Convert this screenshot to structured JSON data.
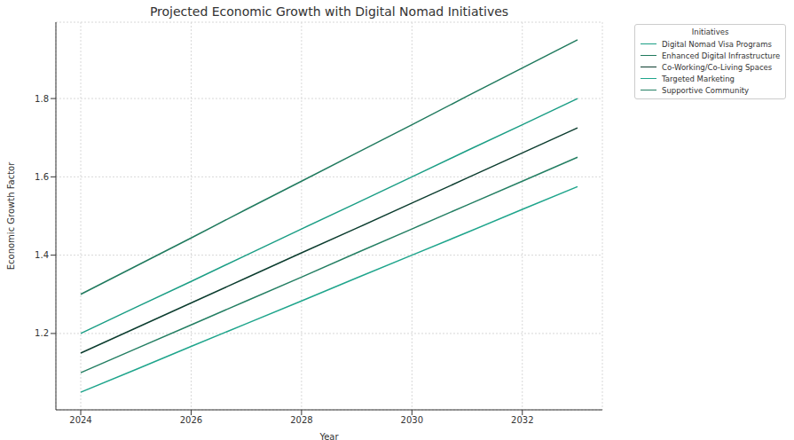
{
  "chart_data": {
    "type": "line",
    "title": "Projected Economic Growth with Digital Nomad Initiatives",
    "x_label": "Year",
    "y_label": "Economic Growth Factor",
    "legend_title": "Initiatives",
    "x": [
      2024,
      2025,
      2026,
      2027,
      2028,
      2029,
      2030,
      2031,
      2032,
      2033
    ],
    "series": [
      {
        "name": "Digital Nomad Visa Programs",
        "color": "#1b9e85",
        "values": [
          1.2,
          1.267,
          1.333,
          1.4,
          1.467,
          1.533,
          1.6,
          1.667,
          1.733,
          1.8
        ]
      },
      {
        "name": "Enhanced Digital Infrastructure",
        "color": "#207a5e",
        "values": [
          1.3,
          1.372,
          1.444,
          1.517,
          1.589,
          1.661,
          1.733,
          1.806,
          1.878,
          1.95
        ]
      },
      {
        "name": "Co-Working/Co-Living Spaces",
        "color": "#0c3d2f",
        "values": [
          1.15,
          1.214,
          1.278,
          1.342,
          1.406,
          1.469,
          1.533,
          1.597,
          1.661,
          1.725
        ]
      },
      {
        "name": "Targeted Marketing",
        "color": "#1fa58c",
        "values": [
          1.05,
          1.108,
          1.167,
          1.225,
          1.283,
          1.342,
          1.4,
          1.458,
          1.517,
          1.575
        ]
      },
      {
        "name": "Supportive Community",
        "color": "#247f63",
        "values": [
          1.1,
          1.161,
          1.222,
          1.283,
          1.344,
          1.406,
          1.467,
          1.528,
          1.589,
          1.65
        ]
      }
    ],
    "xlim": [
      2023.55,
      2033.45
    ],
    "xticks": [
      2024,
      2026,
      2028,
      2030,
      2032
    ],
    "ylim": [
      1.005,
      1.995
    ],
    "yticks": [
      1.2,
      1.4,
      1.6,
      1.8
    ],
    "grid": true,
    "legend": "upper right"
  }
}
